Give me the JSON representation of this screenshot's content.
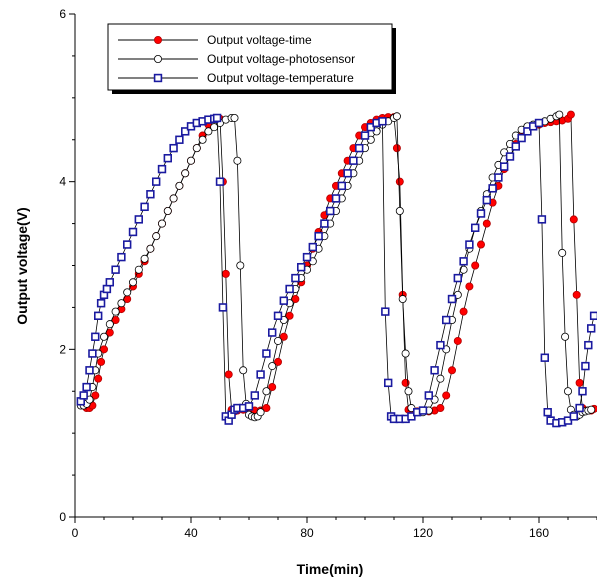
{
  "chart_data": {
    "type": "line",
    "title": "",
    "xlabel": "Time(min)",
    "ylabel": "Output voltage(V)",
    "xlim": [
      0,
      180
    ],
    "ylim": [
      0,
      6
    ],
    "x_ticks": [
      0,
      40,
      80,
      120,
      160
    ],
    "y_ticks": [
      0,
      2,
      4,
      6
    ],
    "x_tick_labels": [
      "0",
      "40",
      "80",
      "120",
      "160"
    ],
    "y_tick_labels": [
      "0",
      "2",
      "4",
      "6"
    ],
    "grid": false,
    "legend_position": "top-left",
    "series": [
      {
        "name": "Output voltage-time",
        "marker": "filled-circle",
        "color": "#e00000",
        "points": [
          [
            3,
            1.33
          ],
          [
            4,
            1.3
          ],
          [
            5,
            1.3
          ],
          [
            6,
            1.33
          ],
          [
            7,
            1.45
          ],
          [
            8,
            1.65
          ],
          [
            9,
            1.85
          ],
          [
            10,
            2.0
          ],
          [
            12,
            2.2
          ],
          [
            14,
            2.35
          ],
          [
            16,
            2.48
          ],
          [
            18,
            2.6
          ],
          [
            20,
            2.75
          ],
          [
            22,
            2.9
          ],
          [
            24,
            3.05
          ],
          [
            26,
            3.2
          ],
          [
            28,
            3.35
          ],
          [
            30,
            3.5
          ],
          [
            32,
            3.65
          ],
          [
            34,
            3.8
          ],
          [
            36,
            3.95
          ],
          [
            38,
            4.1
          ],
          [
            40,
            4.25
          ],
          [
            42,
            4.4
          ],
          [
            44,
            4.55
          ],
          [
            46,
            4.68
          ],
          [
            48,
            4.75
          ],
          [
            49,
            4.76
          ],
          [
            50,
            4.75
          ],
          [
            51,
            4.0
          ],
          [
            52,
            2.9
          ],
          [
            53,
            1.7
          ],
          [
            54,
            1.28
          ],
          [
            55,
            1.26
          ],
          [
            56,
            1.27
          ],
          [
            58,
            1.28
          ],
          [
            60,
            1.27
          ],
          [
            62,
            1.27
          ],
          [
            64,
            1.27
          ],
          [
            66,
            1.3
          ],
          [
            68,
            1.55
          ],
          [
            70,
            1.85
          ],
          [
            72,
            2.15
          ],
          [
            74,
            2.4
          ],
          [
            76,
            2.6
          ],
          [
            78,
            2.8
          ],
          [
            80,
            3.0
          ],
          [
            82,
            3.2
          ],
          [
            84,
            3.4
          ],
          [
            86,
            3.6
          ],
          [
            88,
            3.8
          ],
          [
            90,
            3.95
          ],
          [
            92,
            4.1
          ],
          [
            94,
            4.25
          ],
          [
            96,
            4.4
          ],
          [
            98,
            4.55
          ],
          [
            100,
            4.65
          ],
          [
            102,
            4.7
          ],
          [
            104,
            4.74
          ],
          [
            106,
            4.76
          ],
          [
            108,
            4.77
          ],
          [
            110,
            4.77
          ],
          [
            111,
            4.4
          ],
          [
            112,
            4.0
          ],
          [
            113,
            2.65
          ],
          [
            114,
            1.6
          ],
          [
            115,
            1.28
          ],
          [
            116,
            1.26
          ],
          [
            118,
            1.26
          ],
          [
            120,
            1.26
          ],
          [
            122,
            1.26
          ],
          [
            124,
            1.27
          ],
          [
            126,
            1.3
          ],
          [
            128,
            1.45
          ],
          [
            130,
            1.75
          ],
          [
            132,
            2.1
          ],
          [
            134,
            2.45
          ],
          [
            136,
            2.75
          ],
          [
            138,
            3.0
          ],
          [
            140,
            3.25
          ],
          [
            142,
            3.5
          ],
          [
            144,
            3.75
          ],
          [
            146,
            3.95
          ],
          [
            148,
            4.15
          ],
          [
            150,
            4.3
          ],
          [
            152,
            4.45
          ],
          [
            154,
            4.55
          ],
          [
            156,
            4.62
          ],
          [
            158,
            4.66
          ],
          [
            160,
            4.68
          ],
          [
            162,
            4.7
          ],
          [
            164,
            4.71
          ],
          [
            166,
            4.72
          ],
          [
            168,
            4.73
          ],
          [
            170,
            4.75
          ],
          [
            171,
            4.8
          ],
          [
            172,
            3.55
          ],
          [
            173,
            2.65
          ],
          [
            174,
            1.6
          ],
          [
            175,
            1.3
          ],
          [
            176,
            1.27
          ],
          [
            177,
            1.27
          ],
          [
            178,
            1.27
          ],
          [
            179,
            1.29
          ]
        ]
      },
      {
        "name": "Output voltage-photosensor",
        "marker": "open-circle",
        "color": "#000000",
        "points": [
          [
            2,
            1.33
          ],
          [
            3,
            1.33
          ],
          [
            4,
            1.35
          ],
          [
            5,
            1.4
          ],
          [
            6,
            1.55
          ],
          [
            7,
            1.75
          ],
          [
            8,
            1.95
          ],
          [
            10,
            2.15
          ],
          [
            12,
            2.3
          ],
          [
            14,
            2.45
          ],
          [
            16,
            2.55
          ],
          [
            18,
            2.68
          ],
          [
            20,
            2.8
          ],
          [
            22,
            2.95
          ],
          [
            24,
            3.08
          ],
          [
            26,
            3.2
          ],
          [
            28,
            3.35
          ],
          [
            30,
            3.5
          ],
          [
            32,
            3.65
          ],
          [
            34,
            3.8
          ],
          [
            36,
            3.95
          ],
          [
            38,
            4.1
          ],
          [
            40,
            4.25
          ],
          [
            42,
            4.4
          ],
          [
            44,
            4.5
          ],
          [
            46,
            4.6
          ],
          [
            48,
            4.65
          ],
          [
            50,
            4.7
          ],
          [
            52,
            4.74
          ],
          [
            54,
            4.76
          ],
          [
            55,
            4.76
          ],
          [
            56,
            4.25
          ],
          [
            57,
            3.0
          ],
          [
            58,
            1.75
          ],
          [
            59,
            1.35
          ],
          [
            60,
            1.22
          ],
          [
            61,
            1.2
          ],
          [
            62,
            1.19
          ],
          [
            63,
            1.2
          ],
          [
            64,
            1.25
          ],
          [
            66,
            1.5
          ],
          [
            68,
            1.8
          ],
          [
            70,
            2.1
          ],
          [
            72,
            2.35
          ],
          [
            74,
            2.55
          ],
          [
            76,
            2.72
          ],
          [
            78,
            2.85
          ],
          [
            80,
            2.95
          ],
          [
            82,
            3.05
          ],
          [
            84,
            3.2
          ],
          [
            86,
            3.35
          ],
          [
            88,
            3.5
          ],
          [
            90,
            3.65
          ],
          [
            92,
            3.8
          ],
          [
            94,
            3.95
          ],
          [
            96,
            4.1
          ],
          [
            98,
            4.25
          ],
          [
            100,
            4.4
          ],
          [
            102,
            4.5
          ],
          [
            104,
            4.6
          ],
          [
            106,
            4.68
          ],
          [
            108,
            4.72
          ],
          [
            110,
            4.76
          ],
          [
            111,
            4.78
          ],
          [
            112,
            3.65
          ],
          [
            113,
            2.6
          ],
          [
            114,
            1.95
          ],
          [
            115,
            1.5
          ],
          [
            116,
            1.3
          ],
          [
            118,
            1.25
          ],
          [
            120,
            1.25
          ],
          [
            122,
            1.27
          ],
          [
            124,
            1.4
          ],
          [
            126,
            1.65
          ],
          [
            128,
            2.0
          ],
          [
            130,
            2.35
          ],
          [
            132,
            2.65
          ],
          [
            134,
            2.95
          ],
          [
            136,
            3.2
          ],
          [
            138,
            3.45
          ],
          [
            140,
            3.65
          ],
          [
            142,
            3.85
          ],
          [
            144,
            4.05
          ],
          [
            146,
            4.2
          ],
          [
            148,
            4.35
          ],
          [
            150,
            4.45
          ],
          [
            152,
            4.55
          ],
          [
            154,
            4.62
          ],
          [
            156,
            4.66
          ],
          [
            158,
            4.68
          ],
          [
            160,
            4.7
          ],
          [
            162,
            4.72
          ],
          [
            164,
            4.75
          ],
          [
            166,
            4.78
          ],
          [
            167,
            4.8
          ],
          [
            168,
            3.15
          ],
          [
            169,
            2.15
          ],
          [
            170,
            1.5
          ],
          [
            171,
            1.28
          ],
          [
            172,
            1.22
          ],
          [
            173,
            1.2
          ],
          [
            174,
            1.22
          ],
          [
            175,
            1.25
          ],
          [
            176,
            1.26
          ],
          [
            177,
            1.27
          ],
          [
            178,
            1.28
          ]
        ]
      },
      {
        "name": "Output voltage-temperature",
        "marker": "open-square",
        "color": "#1a1aa0",
        "points": [
          [
            2,
            1.38
          ],
          [
            3,
            1.45
          ],
          [
            4,
            1.55
          ],
          [
            5,
            1.75
          ],
          [
            6,
            1.95
          ],
          [
            7,
            2.15
          ],
          [
            8,
            2.4
          ],
          [
            9,
            2.55
          ],
          [
            10,
            2.65
          ],
          [
            11,
            2.72
          ],
          [
            12,
            2.8
          ],
          [
            14,
            2.95
          ],
          [
            16,
            3.1
          ],
          [
            18,
            3.25
          ],
          [
            20,
            3.4
          ],
          [
            22,
            3.55
          ],
          [
            24,
            3.7
          ],
          [
            26,
            3.85
          ],
          [
            28,
            4.0
          ],
          [
            30,
            4.15
          ],
          [
            32,
            4.28
          ],
          [
            34,
            4.4
          ],
          [
            36,
            4.5
          ],
          [
            38,
            4.6
          ],
          [
            40,
            4.66
          ],
          [
            42,
            4.7
          ],
          [
            44,
            4.72
          ],
          [
            46,
            4.74
          ],
          [
            48,
            4.75
          ],
          [
            49,
            4.76
          ],
          [
            50,
            4.0
          ],
          [
            51,
            2.5
          ],
          [
            52,
            1.2
          ],
          [
            53,
            1.15
          ],
          [
            54,
            1.22
          ],
          [
            55,
            1.28
          ],
          [
            56,
            1.3
          ],
          [
            58,
            1.3
          ],
          [
            60,
            1.32
          ],
          [
            62,
            1.45
          ],
          [
            64,
            1.7
          ],
          [
            66,
            1.95
          ],
          [
            68,
            2.2
          ],
          [
            70,
            2.4
          ],
          [
            72,
            2.58
          ],
          [
            74,
            2.72
          ],
          [
            76,
            2.85
          ],
          [
            78,
            2.98
          ],
          [
            80,
            3.1
          ],
          [
            82,
            3.22
          ],
          [
            84,
            3.35
          ],
          [
            86,
            3.5
          ],
          [
            88,
            3.65
          ],
          [
            90,
            3.8
          ],
          [
            92,
            3.95
          ],
          [
            94,
            4.1
          ],
          [
            96,
            4.25
          ],
          [
            98,
            4.4
          ],
          [
            100,
            4.55
          ],
          [
            102,
            4.65
          ],
          [
            104,
            4.7
          ],
          [
            106,
            4.72
          ],
          [
            107,
            2.45
          ],
          [
            108,
            1.6
          ],
          [
            109,
            1.2
          ],
          [
            110,
            1.17
          ],
          [
            112,
            1.17
          ],
          [
            114,
            1.17
          ],
          [
            116,
            1.2
          ],
          [
            118,
            1.25
          ],
          [
            120,
            1.27
          ],
          [
            122,
            1.45
          ],
          [
            124,
            1.75
          ],
          [
            126,
            2.05
          ],
          [
            128,
            2.35
          ],
          [
            130,
            2.6
          ],
          [
            132,
            2.85
          ],
          [
            134,
            3.05
          ],
          [
            136,
            3.25
          ],
          [
            138,
            3.45
          ],
          [
            140,
            3.62
          ],
          [
            142,
            3.78
          ],
          [
            144,
            3.92
          ],
          [
            146,
            4.05
          ],
          [
            148,
            4.18
          ],
          [
            150,
            4.3
          ],
          [
            152,
            4.42
          ],
          [
            154,
            4.52
          ],
          [
            156,
            4.6
          ],
          [
            158,
            4.66
          ],
          [
            160,
            4.7
          ],
          [
            161,
            3.55
          ],
          [
            162,
            1.9
          ],
          [
            163,
            1.25
          ],
          [
            164,
            1.15
          ],
          [
            166,
            1.12
          ],
          [
            168,
            1.13
          ],
          [
            170,
            1.15
          ],
          [
            172,
            1.2
          ],
          [
            174,
            1.3
          ],
          [
            175,
            1.5
          ],
          [
            176,
            1.8
          ],
          [
            177,
            2.05
          ],
          [
            178,
            2.25
          ],
          [
            179,
            2.4
          ]
        ]
      }
    ]
  }
}
